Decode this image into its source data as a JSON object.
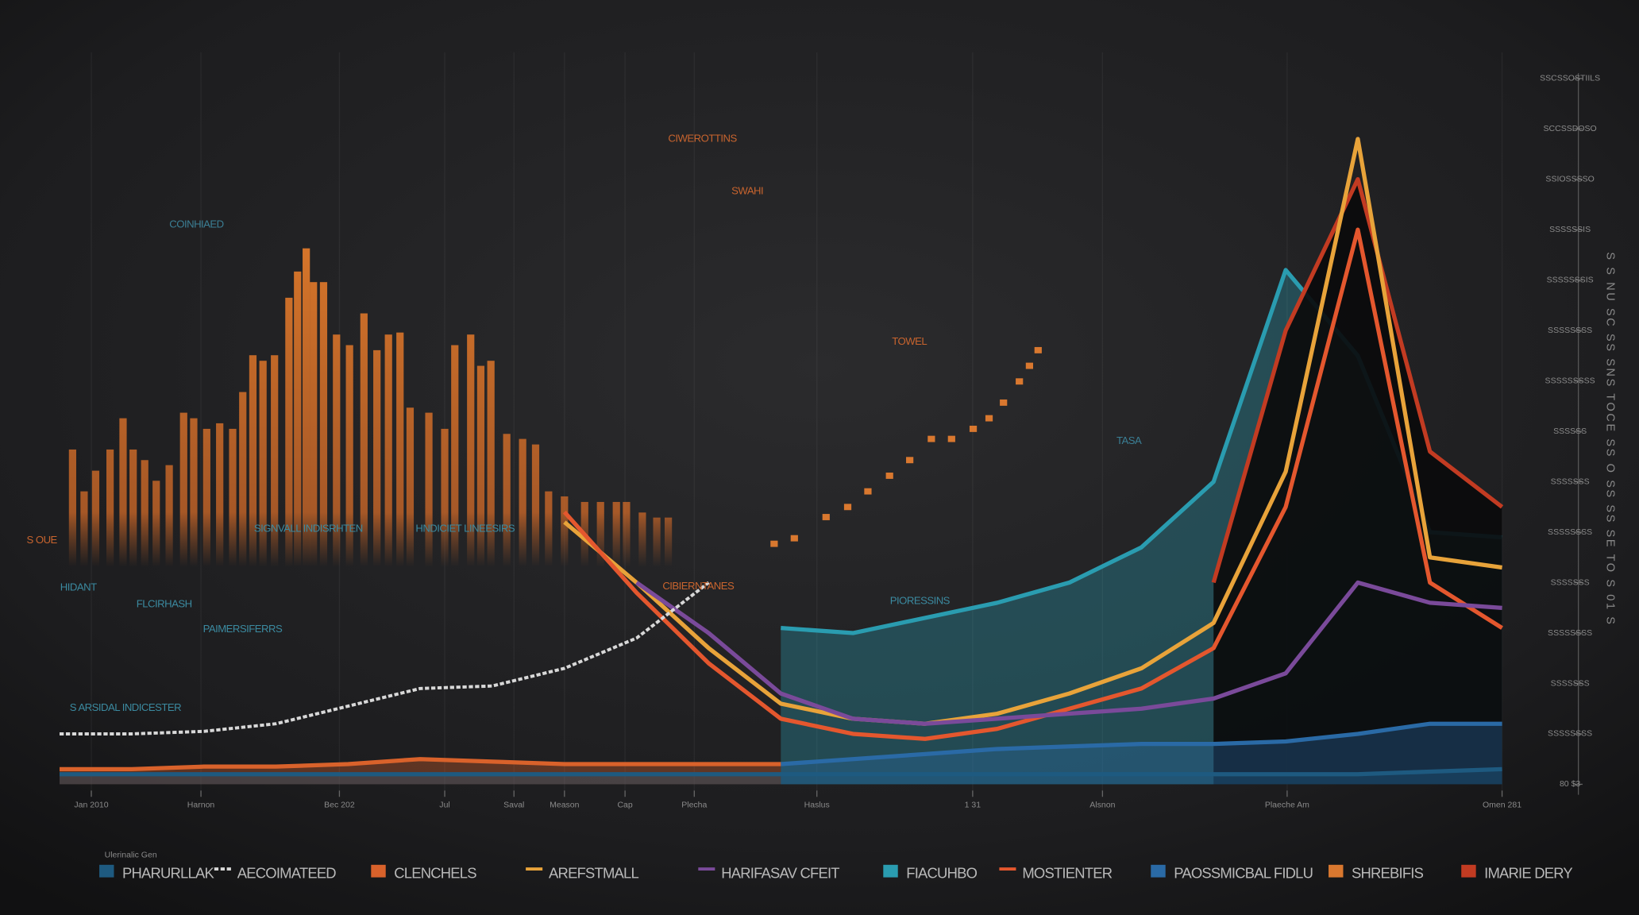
{
  "chart_data": {
    "type": "line",
    "annotations": [
      "CIWEROTTINS",
      "SWAHI",
      "COINHIAED",
      "TOWEL",
      "TASA",
      "SIGNVALL INDISRHTEN",
      "HNDICIET LINEESIRS",
      "S OUE",
      "HIDANT",
      "FLCIRHASH",
      "PAIMERSIFERRS",
      "CIBIERNTANES",
      "PIORESSINS",
      "S ARSIDAL INDICESTER"
    ],
    "ylabel": "S S NU SC SS SNS TOCE SS O SS SS SE TO S 01 S",
    "legend_title": "Ulerinalic Gen",
    "x": [
      0,
      5,
      10,
      15,
      20,
      25,
      30,
      35,
      40,
      45,
      50,
      55,
      60,
      65,
      70,
      75,
      80,
      85,
      90,
      95,
      100
    ],
    "xlim": [
      0,
      100
    ],
    "xticks": [
      {
        "value": 2.2,
        "label": "Jan 2010"
      },
      {
        "value": 9.8,
        "label": "Harnon"
      },
      {
        "value": 19.4,
        "label": "Bec 202"
      },
      {
        "value": 26.7,
        "label": "Jul"
      },
      {
        "value": 31.5,
        "label": "Saval"
      },
      {
        "value": 35,
        "label": "Meason"
      },
      {
        "value": 39.2,
        "label": "Cap"
      },
      {
        "value": 44,
        "label": "Plecha"
      },
      {
        "value": 52.5,
        "label": "Haslus"
      },
      {
        "value": 63.3,
        "label": "1 31"
      },
      {
        "value": 72.3,
        "label": "Alsnon"
      },
      {
        "value": 85.1,
        "label": "Plaeche Am"
      },
      {
        "value": 100,
        "label": "Omen 281"
      }
    ],
    "ylim": [
      0,
      140
    ],
    "yticks": [
      {
        "value": 0,
        "label": "80 $3"
      },
      {
        "value": 10,
        "label": "SSSSSSSS"
      },
      {
        "value": 20,
        "label": "SSSSSSS"
      },
      {
        "value": 30,
        "label": "SSSSSSSS"
      },
      {
        "value": 40,
        "label": "SSSSSSS"
      },
      {
        "value": 50,
        "label": "SSSSSSSS"
      },
      {
        "value": 60,
        "label": "SSSSSSS"
      },
      {
        "value": 70,
        "label": "SSSSSS"
      },
      {
        "value": 80,
        "label": "SSSSSSSSS"
      },
      {
        "value": 90,
        "label": "SSSSSSSS"
      },
      {
        "value": 100,
        "label": "SSSSSSSIS"
      },
      {
        "value": 110,
        "label": "SSSSSSIS"
      },
      {
        "value": 120,
        "label": "SSIOSSSSO"
      },
      {
        "value": 130,
        "label": "SCCSSDOSO"
      },
      {
        "value": 140,
        "label": "SSCSSOSTIILS"
      }
    ],
    "grid": true,
    "series": [
      {
        "name": "PHARURLLAK",
        "type": "area",
        "color": "#1e5a80",
        "values": [
          2,
          2,
          2,
          2,
          2,
          2,
          2,
          2,
          2,
          2,
          2,
          2,
          2,
          2,
          2,
          2,
          2,
          2,
          2,
          2.5,
          3
        ]
      },
      {
        "name": "AECOIMATEED",
        "type": "line",
        "dashed": true,
        "color": "#d8d8d8",
        "values": [
          10,
          10,
          10.5,
          12,
          15.5,
          19,
          19.5,
          23,
          29,
          40,
          null,
          null,
          null,
          null,
          null,
          null,
          null,
          null,
          null,
          null,
          null
        ]
      },
      {
        "name": "CLENCHELS",
        "type": "area",
        "color": "#d9622b",
        "values": [
          3,
          3,
          3.5,
          3.5,
          4,
          5,
          4.5,
          4,
          4,
          4,
          4,
          null,
          null,
          null,
          null,
          null,
          null,
          null,
          null,
          null,
          null
        ]
      },
      {
        "name": "AREFSTMALL",
        "type": "line",
        "color": "#e8a33a",
        "values": [
          null,
          null,
          null,
          null,
          null,
          null,
          null,
          52,
          40,
          27,
          16,
          13,
          12,
          14,
          18,
          23,
          32,
          62,
          128,
          45,
          43
        ]
      },
      {
        "name": "HARIFASAV CFEIT",
        "type": "line",
        "color": "#7a4a9a",
        "values": [
          null,
          null,
          null,
          null,
          null,
          null,
          null,
          null,
          40,
          30,
          18,
          13,
          12,
          13,
          14,
          15,
          17,
          22,
          40,
          36,
          35
        ]
      },
      {
        "name": "FIACUHBO",
        "type": "area",
        "color": "#2a9cb0",
        "values": [
          null,
          null,
          null,
          null,
          null,
          null,
          null,
          null,
          null,
          null,
          31,
          30,
          33,
          36,
          40,
          47,
          60,
          102,
          85,
          50,
          49
        ]
      },
      {
        "name": "MOSTIENTER",
        "type": "line",
        "color": "#e4572e",
        "values": [
          null,
          null,
          null,
          null,
          null,
          null,
          null,
          54,
          38,
          24,
          13,
          10,
          9,
          11,
          15,
          19,
          27,
          55,
          110,
          40,
          31
        ]
      },
      {
        "name": "PAOSSMICBAL FIDLU",
        "type": "area",
        "color": "#2a6aa6",
        "values": [
          null,
          null,
          null,
          null,
          null,
          null,
          null,
          null,
          null,
          null,
          4,
          5,
          6,
          7,
          7.5,
          8,
          8,
          8.5,
          10,
          12,
          12
        ]
      },
      {
        "name": "SHREBIFIS",
        "type": "bar",
        "color": "#d9782f",
        "x": [
          0.9,
          1.7,
          2.5,
          3.5,
          4.4,
          5.1,
          5.9,
          6.7,
          7.6,
          8.6,
          9.3,
          10.2,
          11.1,
          12.0,
          12.7,
          13.4,
          14.1,
          14.9,
          15.9,
          16.5,
          17.1,
          17.6,
          18.3,
          19.2,
          20.1,
          21.1,
          22.0,
          22.8,
          23.6,
          24.3,
          25.6,
          26.7,
          27.4,
          28.5,
          29.2,
          29.9,
          31.0,
          32.1,
          33.0,
          33.9,
          35.0,
          36.4,
          37.5,
          38.6,
          39.3,
          40.4,
          41.4,
          42.2
        ],
        "values": [
          66.4,
          58.1,
          62.2,
          66.4,
          72.6,
          66.4,
          64.3,
          60.2,
          63.3,
          73.7,
          72.6,
          70.5,
          71.6,
          70.5,
          77.8,
          85.1,
          84.0,
          85.1,
          96.5,
          101.7,
          106.3,
          99.6,
          99.6,
          89.2,
          87.1,
          93.4,
          86.1,
          89.2,
          89.6,
          74.7,
          73.7,
          70.5,
          87.1,
          89.2,
          83.0,
          84.0,
          69.5,
          68.5,
          67.4,
          58.1,
          57.1,
          56.0,
          56.0,
          56.0,
          56.0,
          53.9,
          52.9,
          52.9
        ]
      },
      {
        "name": "IMARIE DERY",
        "type": "area",
        "color": "#c23b22",
        "fill_color": "#0b0b0c",
        "values": [
          null,
          null,
          null,
          null,
          null,
          null,
          null,
          null,
          null,
          null,
          null,
          null,
          null,
          null,
          null,
          null,
          40,
          90,
          120,
          66,
          55
        ]
      },
      {
        "type": "markers",
        "color": "#d9782f",
        "x": [
          49.5,
          50.9,
          53.1,
          54.6,
          56.0,
          57.5,
          58.9,
          60.4,
          61.8,
          63.3,
          64.4,
          65.4,
          66.5,
          67.2,
          67.8
        ],
        "values": [
          47.7,
          48.8,
          53.0,
          55.0,
          58.1,
          61.2,
          64.3,
          68.5,
          68.5,
          70.5,
          72.6,
          75.7,
          79.9,
          83.0,
          86.1
        ]
      }
    ]
  }
}
